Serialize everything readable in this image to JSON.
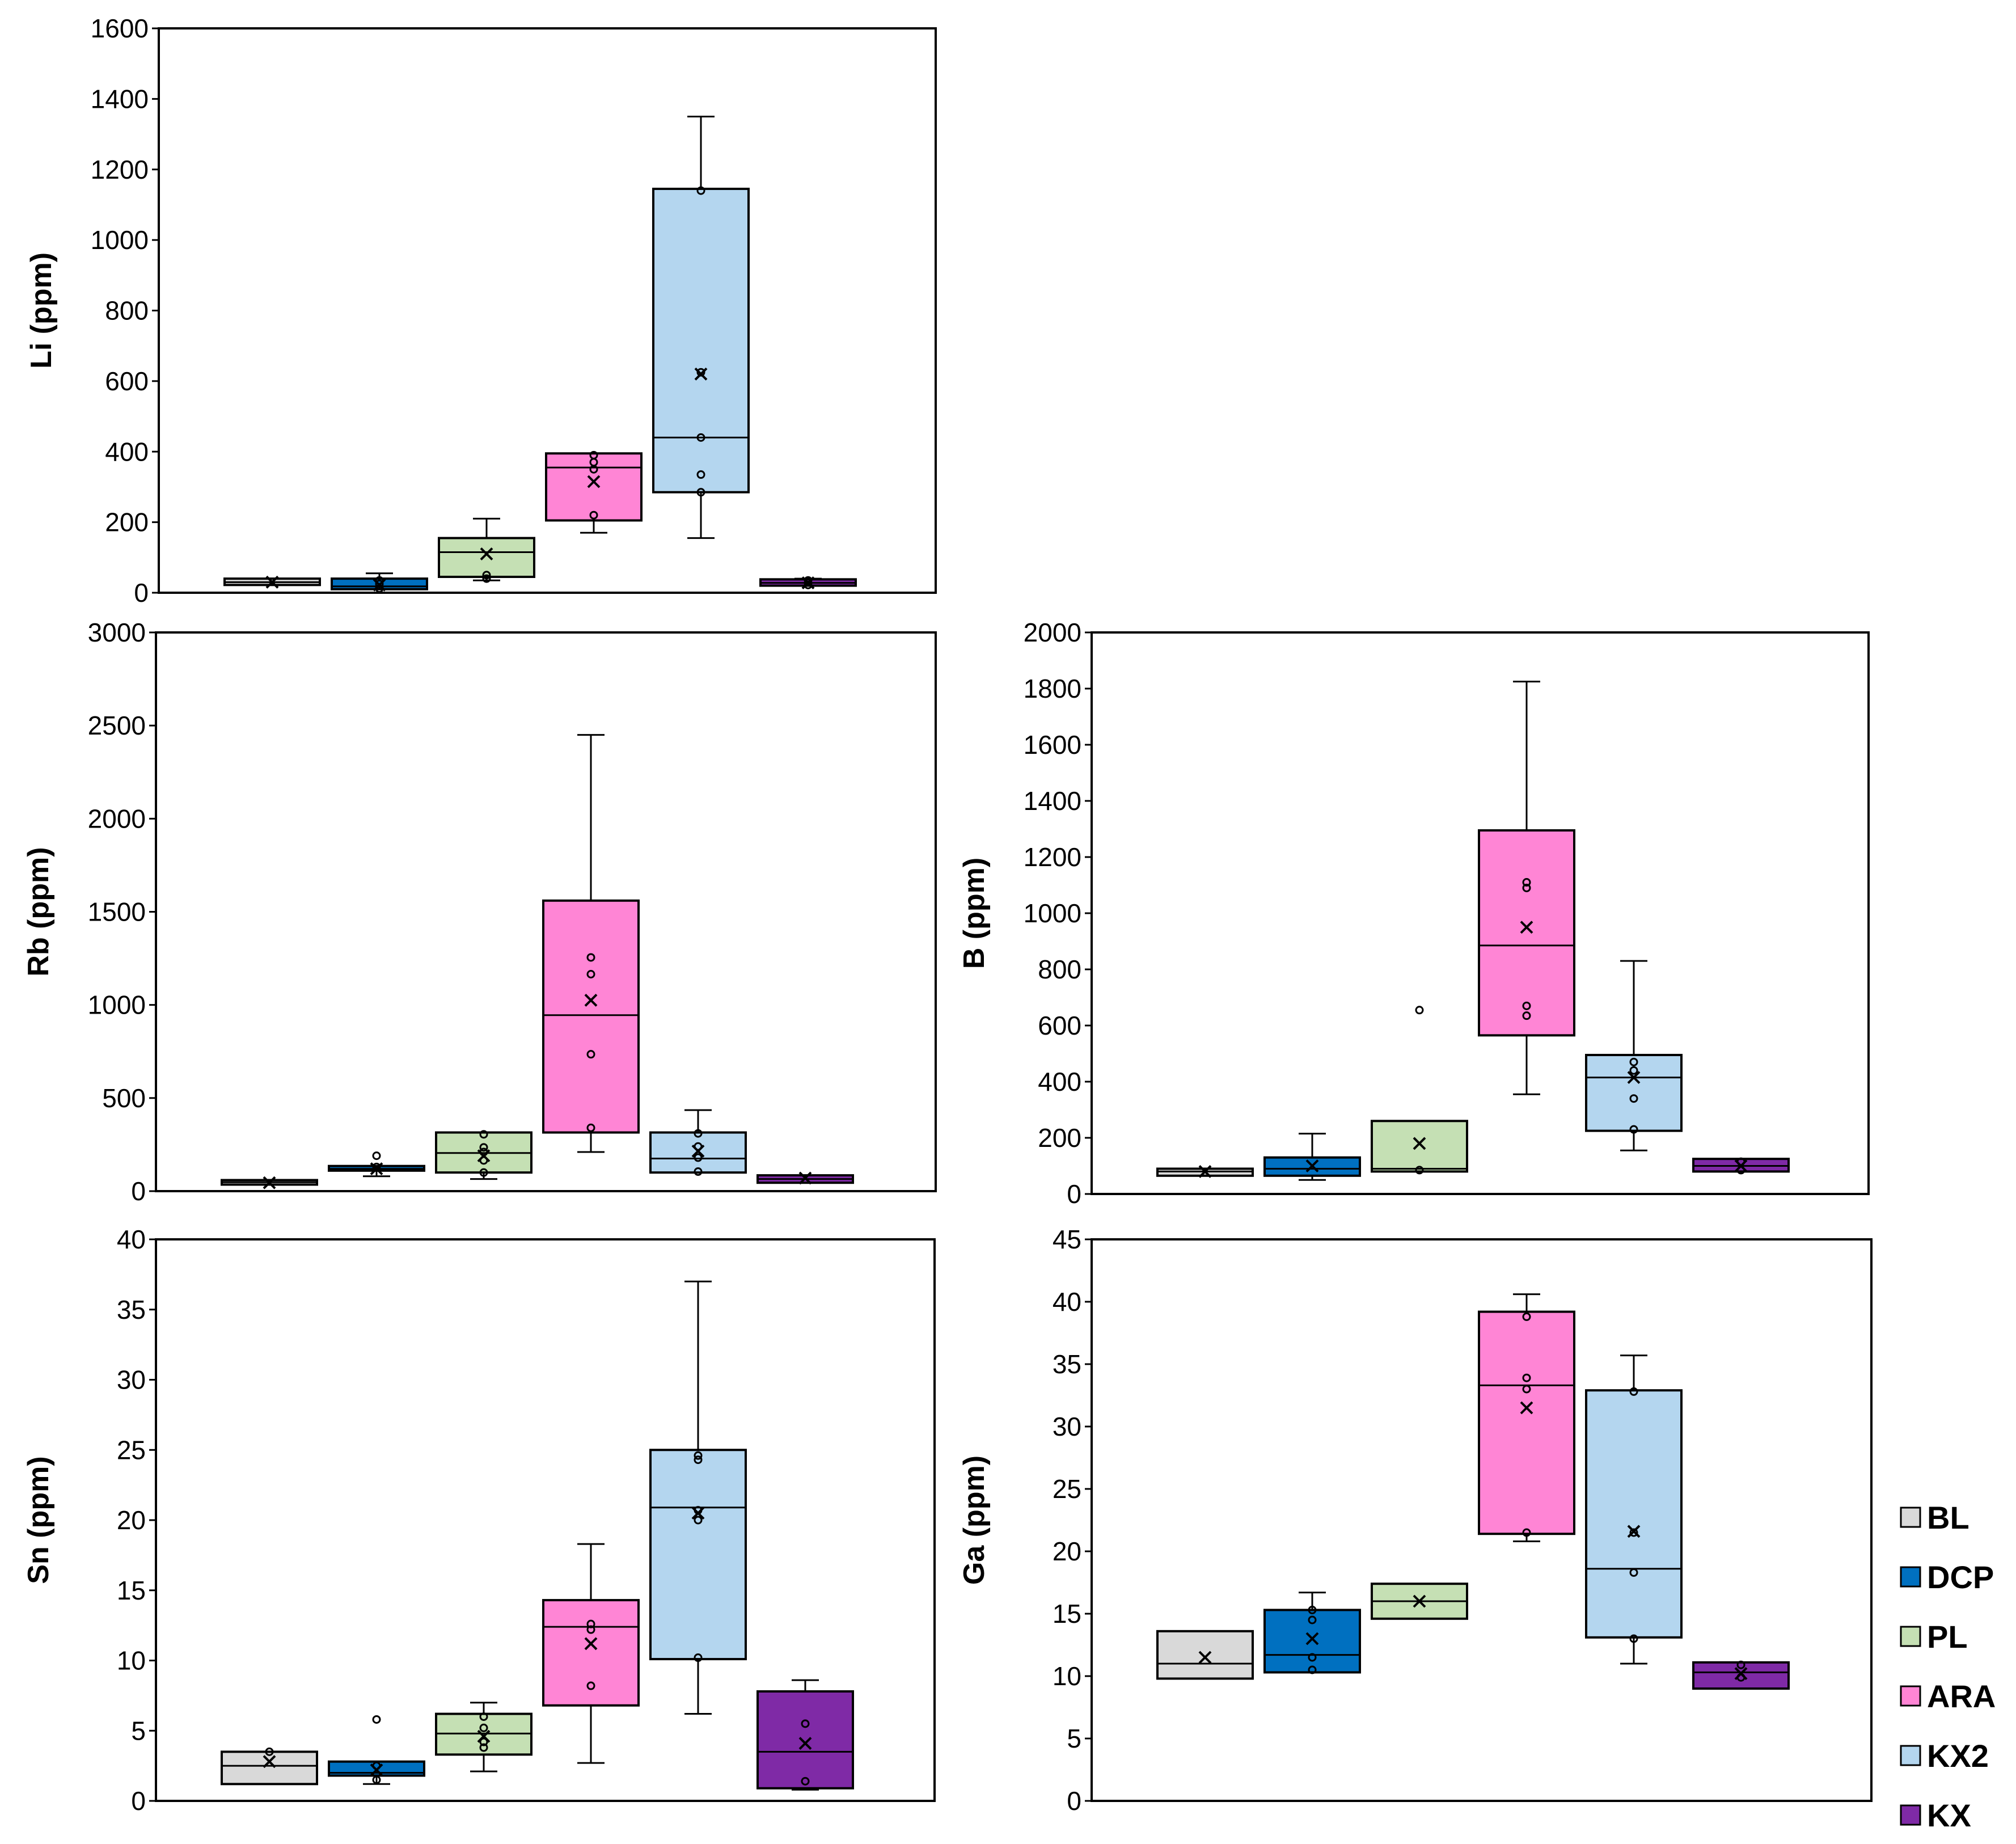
{
  "figure": {
    "groups": [
      "BL",
      "DCP",
      "PL",
      "ARA",
      "KX2",
      "KX"
    ],
    "colors": {
      "BL": "#d9d9d9",
      "DCP": "#0070c0",
      "PL": "#c5e0b4",
      "ARA": "#ff85d5",
      "KX2": "#b4d6ef",
      "KX": "#7f2aa6"
    }
  },
  "legend": {
    "items": [
      {
        "label": "BL",
        "color": "#d9d9d9"
      },
      {
        "label": "DCP",
        "color": "#0070c0"
      },
      {
        "label": "PL",
        "color": "#c5e0b4"
      },
      {
        "label": "ARA",
        "color": "#ff85d5"
      },
      {
        "label": "KX2",
        "color": "#b4d6ef"
      },
      {
        "label": "KX",
        "color": "#7f2aa6"
      }
    ]
  },
  "chart_data": [
    {
      "type": "box",
      "id": "li",
      "ylabel": "Li (ppm)",
      "ylim": [
        0,
        1600
      ],
      "yticks": [
        0,
        200,
        400,
        600,
        800,
        1000,
        1200,
        1400,
        1600
      ],
      "grid": false,
      "boxes": [
        {
          "group": "BL",
          "whisker_low": 22,
          "q1": 22,
          "median": 30,
          "q3": 40,
          "whisker_high": 40,
          "mean": 30,
          "points": []
        },
        {
          "group": "DCP",
          "whisker_low": 10,
          "q1": 10,
          "median": 18,
          "q3": 40,
          "whisker_high": 55,
          "mean": 22,
          "points": [
            12,
            25,
            35
          ]
        },
        {
          "group": "PL",
          "whisker_low": 35,
          "q1": 45,
          "median": 115,
          "q3": 155,
          "whisker_high": 210,
          "mean": 110,
          "points": [
            40,
            50
          ]
        },
        {
          "group": "ARA",
          "whisker_low": 170,
          "q1": 205,
          "median": 355,
          "q3": 395,
          "whisker_high": 395,
          "mean": 315,
          "points": [
            220,
            350,
            370,
            390
          ]
        },
        {
          "group": "KX2",
          "whisker_low": 155,
          "q1": 285,
          "median": 440,
          "q3": 1145,
          "whisker_high": 1350,
          "mean": 620,
          "points": [
            285,
            335,
            440,
            625,
            1140
          ]
        },
        {
          "group": "KX",
          "whisker_low": 20,
          "q1": 20,
          "median": 28,
          "q3": 38,
          "whisker_high": 40,
          "mean": 28,
          "points": [
            22,
            35
          ]
        }
      ]
    },
    {
      "type": "box",
      "id": "rb",
      "ylabel": "Rb (ppm)",
      "ylim": [
        0,
        3000
      ],
      "yticks": [
        0,
        500,
        1000,
        1500,
        2000,
        2500,
        3000
      ],
      "grid": false,
      "boxes": [
        {
          "group": "BL",
          "whisker_low": 35,
          "q1": 35,
          "median": 48,
          "q3": 55,
          "whisker_high": 55,
          "mean": 45,
          "points": []
        },
        {
          "group": "DCP",
          "whisker_low": 80,
          "q1": 110,
          "median": 120,
          "q3": 135,
          "whisker_high": 135,
          "mean": 120,
          "points": [
            130,
            190
          ]
        },
        {
          "group": "PL",
          "whisker_low": 65,
          "q1": 100,
          "median": 205,
          "q3": 315,
          "whisker_high": 315,
          "mean": 190,
          "points": [
            100,
            165,
            210,
            235,
            305
          ]
        },
        {
          "group": "ARA",
          "whisker_low": 210,
          "q1": 315,
          "median": 945,
          "q3": 1560,
          "whisker_high": 2450,
          "mean": 1025,
          "points": [
            340,
            735,
            1165,
            1255
          ]
        },
        {
          "group": "KX2",
          "whisker_low": 100,
          "q1": 100,
          "median": 175,
          "q3": 315,
          "whisker_high": 435,
          "mean": 215,
          "points": [
            105,
            180,
            240,
            310
          ]
        },
        {
          "group": "KX",
          "whisker_low": 45,
          "q1": 45,
          "median": 65,
          "q3": 85,
          "whisker_high": 85,
          "mean": 70,
          "points": []
        }
      ]
    },
    {
      "type": "box",
      "id": "b",
      "ylabel": "B (ppm)",
      "ylim": [
        0,
        2000
      ],
      "yticks": [
        0,
        200,
        400,
        600,
        800,
        1000,
        1200,
        1400,
        1600,
        1800,
        2000
      ],
      "grid": false,
      "boxes": [
        {
          "group": "BL",
          "whisker_low": 65,
          "q1": 65,
          "median": 80,
          "q3": 90,
          "whisker_high": 90,
          "mean": 80,
          "points": []
        },
        {
          "group": "DCP",
          "whisker_low": 50,
          "q1": 65,
          "median": 90,
          "q3": 130,
          "whisker_high": 215,
          "mean": 100,
          "points": []
        },
        {
          "group": "PL",
          "whisker_low": 80,
          "q1": 80,
          "median": 90,
          "q3": 260,
          "whisker_high": 260,
          "mean": 180,
          "points": [
            85,
            655
          ]
        },
        {
          "group": "ARA",
          "whisker_low": 355,
          "q1": 565,
          "median": 885,
          "q3": 1295,
          "whisker_high": 1825,
          "mean": 950,
          "points": [
            635,
            670,
            1090,
            1110
          ]
        },
        {
          "group": "KX2",
          "whisker_low": 155,
          "q1": 225,
          "median": 415,
          "q3": 495,
          "whisker_high": 830,
          "mean": 415,
          "points": [
            230,
            340,
            440,
            470
          ]
        },
        {
          "group": "KX",
          "whisker_low": 80,
          "q1": 80,
          "median": 100,
          "q3": 125,
          "whisker_high": 125,
          "mean": 100,
          "points": [
            85,
            115
          ]
        }
      ]
    },
    {
      "type": "box",
      "id": "sn",
      "ylabel": "Sn (ppm)",
      "ylim": [
        0,
        40
      ],
      "yticks": [
        0,
        5,
        10,
        15,
        20,
        25,
        30,
        35,
        40
      ],
      "grid": false,
      "boxes": [
        {
          "group": "BL",
          "whisker_low": 1.2,
          "q1": 1.2,
          "median": 2.5,
          "q3": 3.5,
          "whisker_high": 3.5,
          "mean": 2.8,
          "points": [
            3.5
          ]
        },
        {
          "group": "DCP",
          "whisker_low": 1.2,
          "q1": 1.8,
          "median": 2.0,
          "q3": 2.8,
          "whisker_high": 2.8,
          "mean": 2.2,
          "points": [
            1.5,
            2.5,
            5.8
          ]
        },
        {
          "group": "PL",
          "whisker_low": 2.1,
          "q1": 3.3,
          "median": 4.8,
          "q3": 6.2,
          "whisker_high": 7.0,
          "mean": 4.6,
          "points": [
            3.8,
            4.2,
            5.2,
            6.0
          ]
        },
        {
          "group": "ARA",
          "whisker_low": 2.7,
          "q1": 6.8,
          "median": 12.4,
          "q3": 14.3,
          "whisker_high": 18.3,
          "mean": 11.2,
          "points": [
            8.2,
            12.2,
            12.6
          ]
        },
        {
          "group": "KX2",
          "whisker_low": 6.2,
          "q1": 10.1,
          "median": 20.9,
          "q3": 25.0,
          "whisker_high": 37.0,
          "mean": 20.5,
          "points": [
            10.2,
            20.0,
            20.7,
            24.3,
            24.6
          ]
        },
        {
          "group": "KX",
          "whisker_low": 0.8,
          "q1": 0.9,
          "median": 3.5,
          "q3": 7.8,
          "whisker_high": 8.6,
          "mean": 4.1,
          "points": [
            1.4,
            5.5
          ]
        }
      ]
    },
    {
      "type": "box",
      "id": "ga",
      "ylabel": "Ga (ppm)",
      "ylim": [
        0,
        45
      ],
      "yticks": [
        0,
        5,
        10,
        15,
        20,
        25,
        30,
        35,
        40,
        45
      ],
      "grid": false,
      "boxes": [
        {
          "group": "BL",
          "whisker_low": 9.8,
          "q1": 9.8,
          "median": 11.0,
          "q3": 13.6,
          "whisker_high": 13.6,
          "mean": 11.5,
          "points": []
        },
        {
          "group": "DCP",
          "whisker_low": 10.3,
          "q1": 10.3,
          "median": 11.7,
          "q3": 15.3,
          "whisker_high": 16.7,
          "mean": 13.0,
          "points": [
            10.5,
            11.5,
            14.5,
            15.3
          ]
        },
        {
          "group": "PL",
          "whisker_low": 14.6,
          "q1": 14.6,
          "median": 16.0,
          "q3": 17.4,
          "whisker_high": 17.4,
          "mean": 16.0,
          "points": []
        },
        {
          "group": "ARA",
          "whisker_low": 20.8,
          "q1": 21.4,
          "median": 33.3,
          "q3": 39.2,
          "whisker_high": 40.6,
          "mean": 31.5,
          "points": [
            21.5,
            33.0,
            33.9,
            38.8
          ]
        },
        {
          "group": "KX2",
          "whisker_low": 11.0,
          "q1": 13.1,
          "median": 18.6,
          "q3": 32.9,
          "whisker_high": 35.7,
          "mean": 21.6,
          "points": [
            13.0,
            18.3,
            21.5,
            32.8
          ]
        },
        {
          "group": "KX",
          "whisker_low": 9.0,
          "q1": 9.0,
          "median": 10.3,
          "q3": 11.1,
          "whisker_high": 11.1,
          "mean": 10.2,
          "points": [
            9.9,
            10.9
          ]
        }
      ]
    }
  ]
}
